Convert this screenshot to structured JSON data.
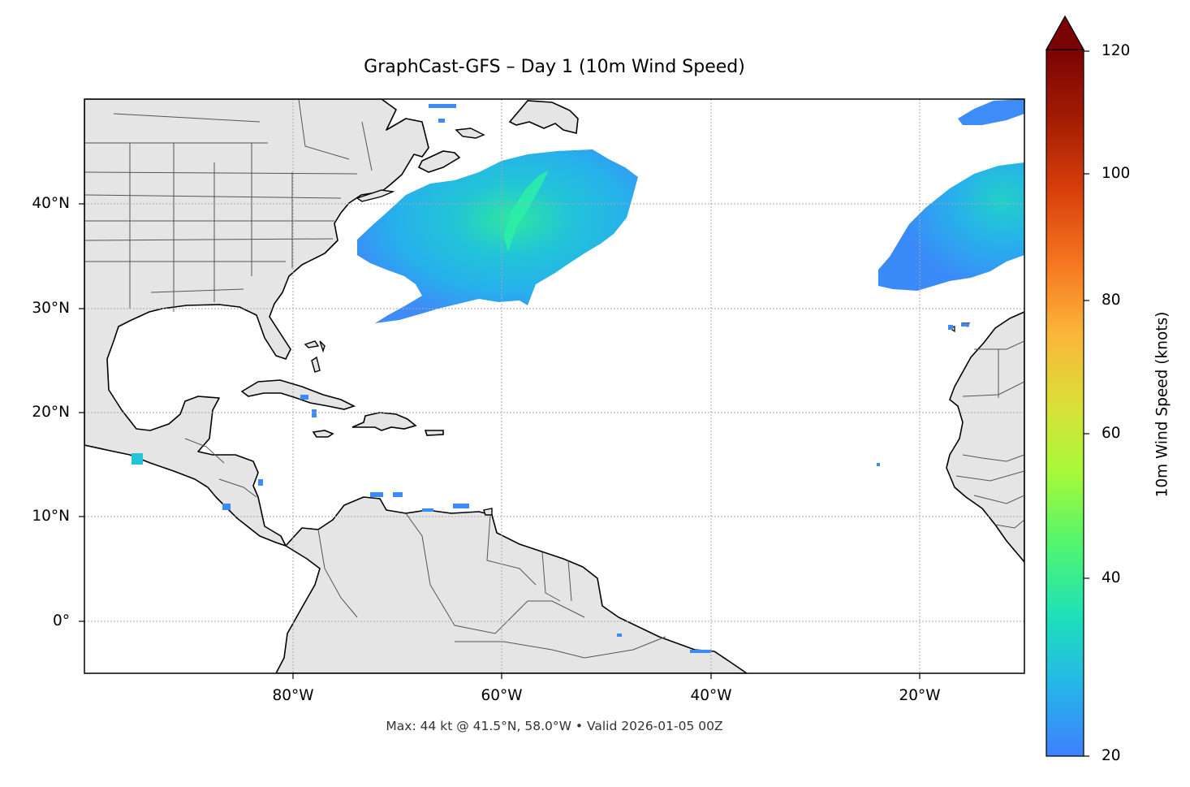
{
  "title": "GraphCast-GFS – Day 1 (10m Wind Speed)",
  "footer": "Max: 44 kt @ 41.5°N, 58.0°W • Valid 2026-01-05 00Z",
  "map": {
    "extent_lon": [
      -100,
      -10
    ],
    "extent_lat": [
      -5,
      50
    ],
    "lat_ticks": [
      {
        "value": 40,
        "label": "40°N"
      },
      {
        "value": 30,
        "label": "30°N"
      },
      {
        "value": 20,
        "label": "20°N"
      },
      {
        "value": 10,
        "label": "10°N"
      },
      {
        "value": 0,
        "label": "0°"
      }
    ],
    "lon_ticks": [
      {
        "value": -80,
        "label": "80°W"
      },
      {
        "value": -60,
        "label": "60°W"
      },
      {
        "value": -40,
        "label": "40°W"
      },
      {
        "value": -20,
        "label": "20°W"
      }
    ],
    "land_color": "#e5e5e5",
    "ocean_color": "#ffffff",
    "coastline_color": "#000000",
    "border_color": "#555555",
    "gridlines": true
  },
  "colorbar": {
    "label": "10m Wind Speed (knots)",
    "min": 20,
    "max": 120,
    "extend": "max",
    "colormap": "turbo",
    "ticks": [
      {
        "value": 120,
        "label": "120"
      },
      {
        "value": 100,
        "label": "100"
      },
      {
        "value": 80,
        "label": "80"
      },
      {
        "value": 60,
        "label": "60"
      },
      {
        "value": 40,
        "label": "40"
      },
      {
        "value": 20,
        "label": "20"
      }
    ],
    "stops": [
      "#3f7ffd",
      "#25b6ea",
      "#1fe1b7",
      "#52f56e",
      "#a6f93a",
      "#dcde38",
      "#fbb43a",
      "#f5751f",
      "#d8400c",
      "#a41d03",
      "#7a0403"
    ]
  },
  "max_wind": {
    "speed_kt": 44,
    "lat": 41.5,
    "lon": -58.0
  }
}
